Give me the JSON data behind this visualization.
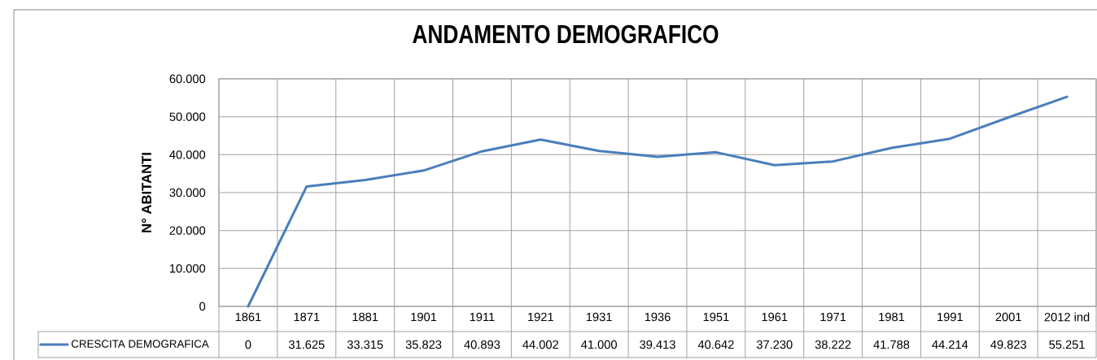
{
  "chart_data": {
    "type": "line",
    "title": "ANDAMENTO DEMOGRAFICO",
    "ylabel": "N° ABITANTI",
    "categories": [
      "1861",
      "1871",
      "1881",
      "1901",
      "1911",
      "1921",
      "1931",
      "1936",
      "1951",
      "1961",
      "1971",
      "1981",
      "1991",
      "2001",
      "2012 ind"
    ],
    "series": [
      {
        "name": "CRESCITA DEMOGRAFICA",
        "color": "#4a7ebb",
        "values": [
          0,
          31625,
          33315,
          35823,
          40893,
          44002,
          41000,
          39413,
          40642,
          37230,
          38222,
          41788,
          44214,
          49823,
          55251
        ],
        "value_labels": [
          "0",
          "31.625",
          "33.315",
          "35.823",
          "40.893",
          "44.002",
          "41.000",
          "39.413",
          "40.642",
          "37.230",
          "38.222",
          "41.788",
          "44.214",
          "49.823",
          "55.251"
        ]
      }
    ],
    "ylim": [
      0,
      60000
    ],
    "yticks": [
      0,
      {
        "value": 10000,
        "label": "10.000"
      },
      {
        "value": 20000,
        "label": "20.000"
      },
      {
        "value": 30000,
        "label": "30.000"
      },
      {
        "value": 40000,
        "label": "40.000"
      },
      {
        "value": 50000,
        "label": "50.000"
      },
      {
        "value": 60000,
        "label": "60.000"
      }
    ],
    "grid": true,
    "legend": "bottom left",
    "marker": "none",
    "line_style": "solid"
  }
}
